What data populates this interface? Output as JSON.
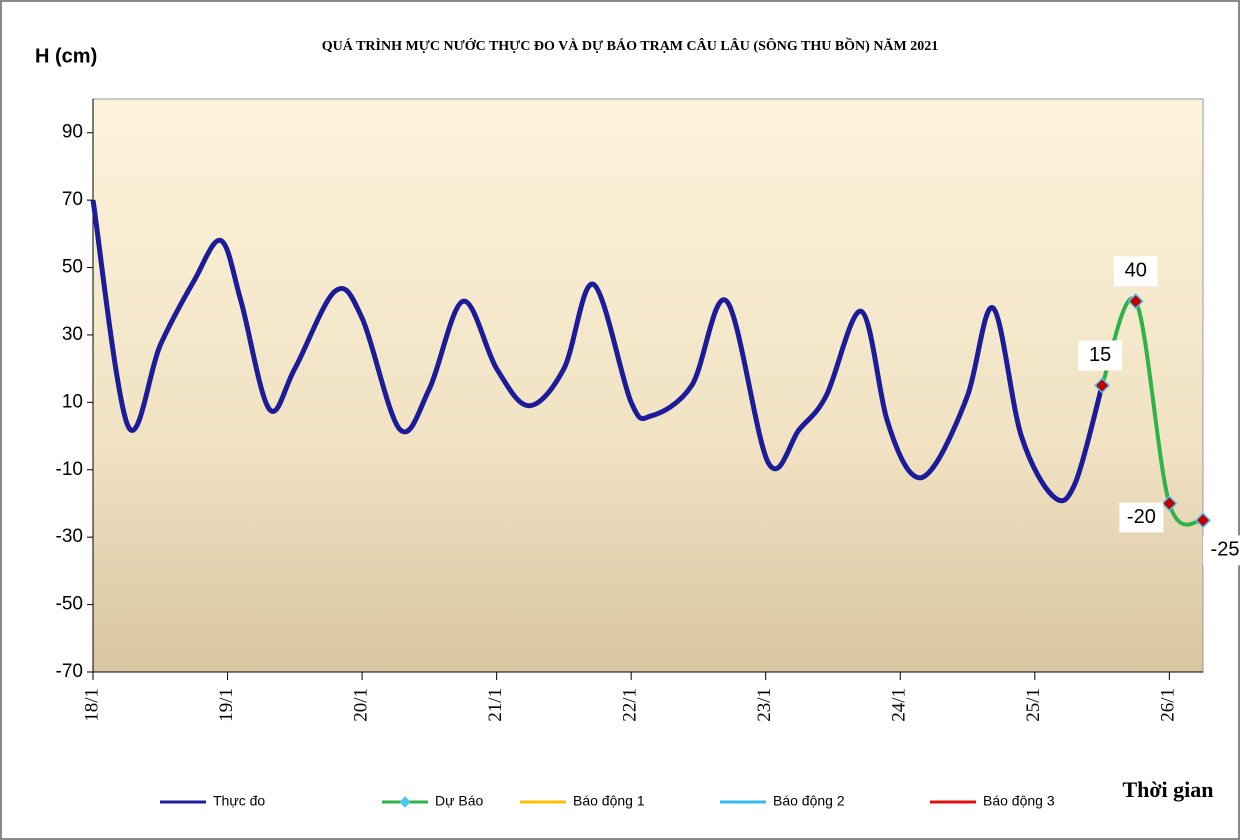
{
  "chart_data": {
    "type": "line",
    "title": "QUÁ TRÌNH MỰC NƯỚC THỰC ĐO VÀ DỰ BÁO TRẠM CÂU LÂU (SÔNG THU BỒN) NĂM 2021",
    "y_label": "H (cm)",
    "x_label": "Thời gian",
    "xlim": [
      0,
      8.25
    ],
    "xticks": [
      {
        "value": 0,
        "label": "18/1"
      },
      {
        "value": 1,
        "label": "19/1"
      },
      {
        "value": 2,
        "label": "20/1"
      },
      {
        "value": 3,
        "label": "21/1"
      },
      {
        "value": 4,
        "label": "22/1"
      },
      {
        "value": 5,
        "label": "23/1"
      },
      {
        "value": 6,
        "label": "24/1"
      },
      {
        "value": 7,
        "label": "25/1"
      },
      {
        "value": 8,
        "label": "26/1"
      }
    ],
    "ylim": [
      -70,
      100
    ],
    "yticks": [
      -70,
      -50,
      -30,
      -10,
      10,
      30,
      50,
      70,
      90
    ],
    "series": [
      {
        "name": "Thực đo",
        "color": "#1c1c9a",
        "x": [
          0,
          0.26,
          0.5,
          0.75,
          0.95,
          1.1,
          1.31,
          1.5,
          1.8,
          2.0,
          2.28,
          2.5,
          2.75,
          3.0,
          3.24,
          3.5,
          3.72,
          4.0,
          4.15,
          4.45,
          4.71,
          5.02,
          5.25,
          5.45,
          5.71,
          5.9,
          6.08,
          6.25,
          6.5,
          6.69,
          6.9,
          7.14,
          7.3,
          7.5
        ],
        "values": [
          70,
          3,
          27,
          46,
          58,
          40,
          8,
          20,
          43,
          35,
          2,
          14,
          40,
          20,
          9,
          20,
          45,
          10,
          6,
          15,
          40,
          -8,
          2,
          12,
          37,
          5,
          -11,
          -9,
          12,
          38,
          0,
          -18,
          -14,
          15
        ]
      },
      {
        "name": "Dự Báo",
        "color": "#2fb24a",
        "marker_fill": "#c00000",
        "marker_edge": "#4fc6ee",
        "x": [
          7.5,
          7.75,
          8.0,
          8.25
        ],
        "values": [
          15,
          40,
          -20,
          -25
        ],
        "data_labels": true
      },
      {
        "name": "Báo động 1",
        "color": "#ffc000"
      },
      {
        "name": "Báo động 2",
        "color": "#33bbee"
      },
      {
        "name": "Báo động 3",
        "color": "#e01010"
      }
    ]
  }
}
